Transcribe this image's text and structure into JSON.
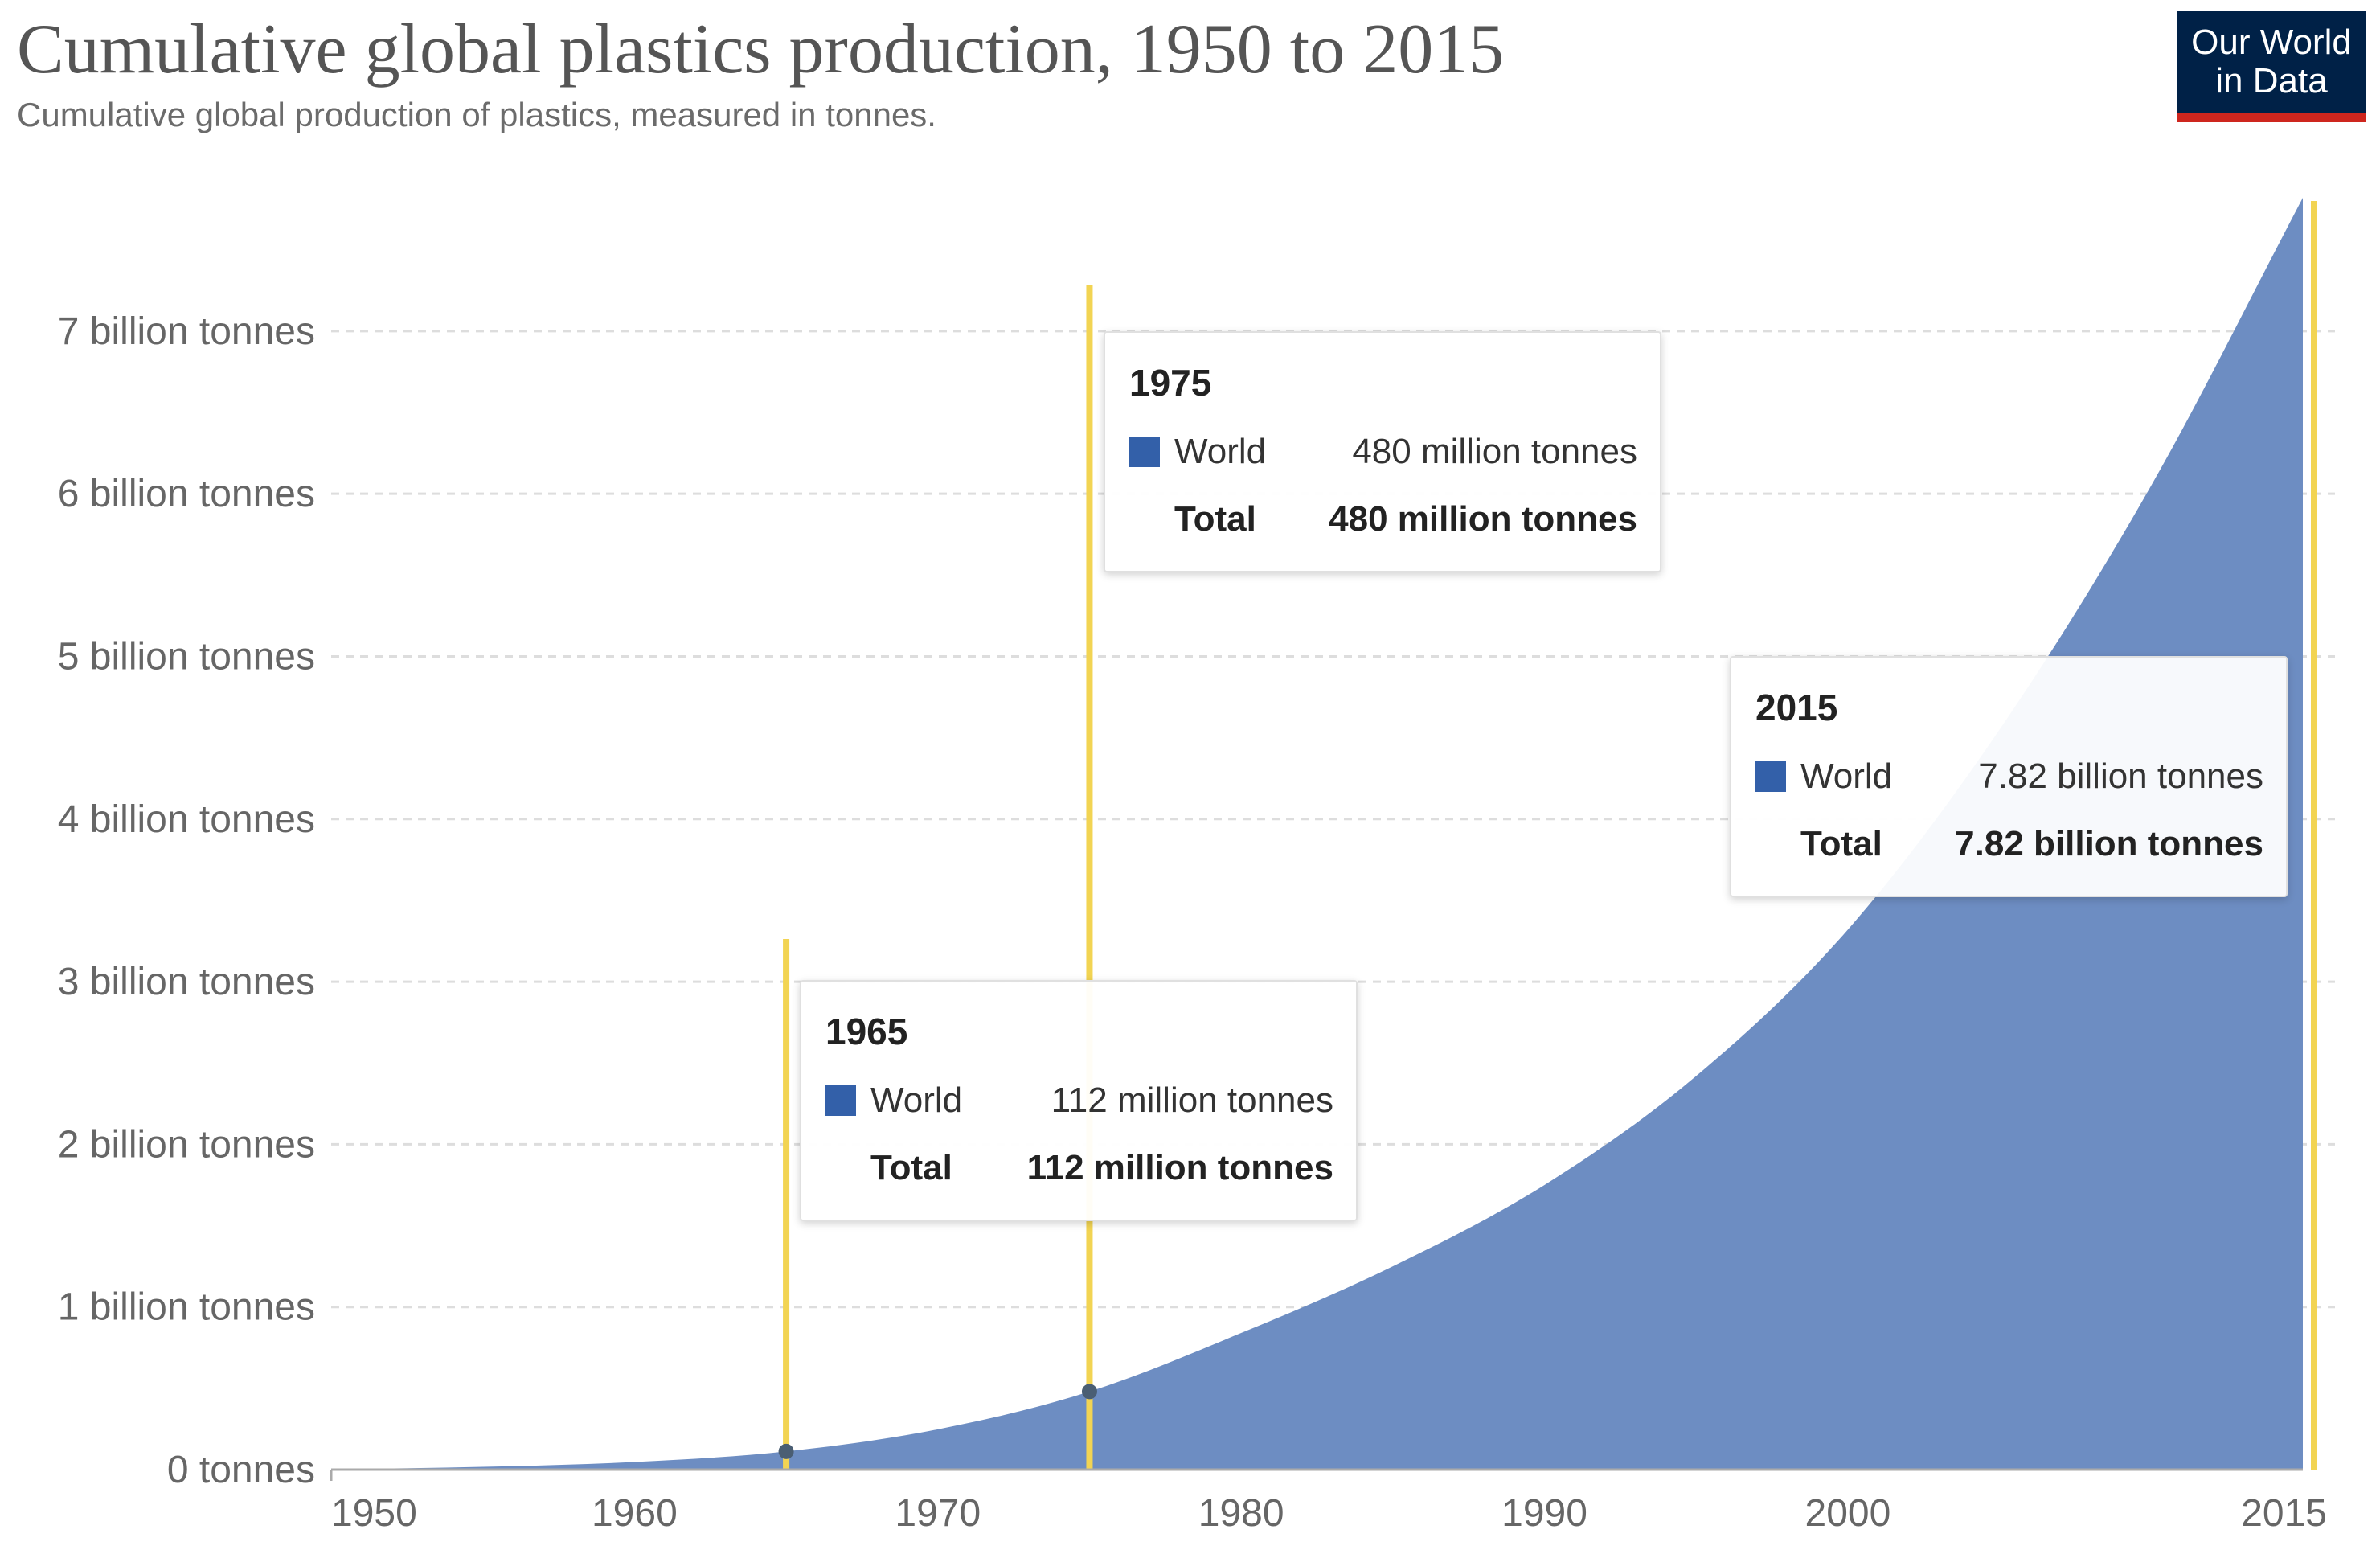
{
  "header": {
    "title": "Cumulative global plastics production, 1950 to 2015",
    "subtitle": "Cumulative global production of plastics, measured in tonnes."
  },
  "brand": {
    "line1": "Our World",
    "line2": "in Data"
  },
  "colors": {
    "area": "#6d8dc2",
    "swatch": "#3360a9",
    "highlight_line": "#f2d453",
    "brand_bg": "#002147",
    "brand_accent": "#ce261e"
  },
  "chart_data": {
    "type": "area",
    "title": "Cumulative global plastics production, 1950 to 2015",
    "subtitle": "Cumulative global production of plastics, measured in tonnes.",
    "xlabel": "",
    "ylabel": "",
    "xlim": [
      1950,
      2015
    ],
    "ylim": [
      0,
      7800000000
    ],
    "grid": true,
    "x_ticks": [
      {
        "value": 1950,
        "label": "1950"
      },
      {
        "value": 1960,
        "label": "1960"
      },
      {
        "value": 1970,
        "label": "1970"
      },
      {
        "value": 1980,
        "label": "1980"
      },
      {
        "value": 1990,
        "label": "1990"
      },
      {
        "value": 2000,
        "label": "2000"
      },
      {
        "value": 2015,
        "label": "2015"
      }
    ],
    "y_ticks": [
      {
        "value": 0,
        "label": "0 tonnes"
      },
      {
        "value": 1000000000,
        "label": "1 billion tonnes"
      },
      {
        "value": 2000000000,
        "label": "2 billion tonnes"
      },
      {
        "value": 3000000000,
        "label": "3 billion tonnes"
      },
      {
        "value": 4000000000,
        "label": "4 billion tonnes"
      },
      {
        "value": 5000000000,
        "label": "5 billion tonnes"
      },
      {
        "value": 6000000000,
        "label": "6 billion tonnes"
      },
      {
        "value": 7000000000,
        "label": "7 billion tonnes"
      }
    ],
    "series": [
      {
        "name": "World",
        "x": [
          1950,
          1955,
          1960,
          1965,
          1970,
          1975,
          1980,
          1985,
          1990,
          1995,
          2000,
          2005,
          2010,
          2015
        ],
        "values": [
          2000000,
          17000000,
          47000000,
          112000000,
          248000000,
          480000000,
          840000000,
          1250000000,
          1750000000,
          2420000000,
          3320000000,
          4550000000,
          6050000000,
          7820000000
        ]
      }
    ],
    "highlights": [
      {
        "year": "1965",
        "x": 1965,
        "series": "World",
        "value_label": "112 million tonnes",
        "total_label": "Total",
        "total_value": "112 million tonnes"
      },
      {
        "year": "1975",
        "x": 1975,
        "series": "World",
        "value_label": "480 million tonnes",
        "total_label": "Total",
        "total_value": "480 million tonnes"
      },
      {
        "year": "2015",
        "x": 2015,
        "series": "World",
        "value_label": "7.82 billion tonnes",
        "total_label": "Total",
        "total_value": "7.82 billion tonnes"
      }
    ]
  }
}
